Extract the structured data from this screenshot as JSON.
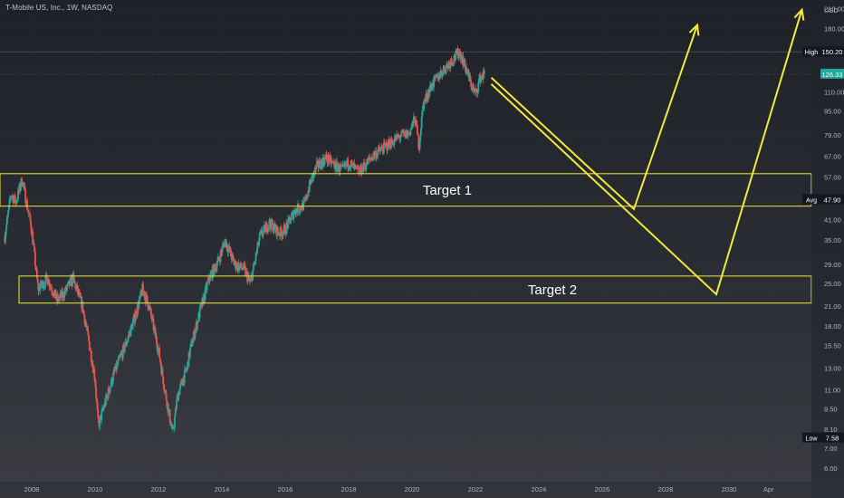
{
  "header": {
    "symbol_title": "T-Mobile US, Inc., 1W, NASDAQ"
  },
  "colors": {
    "up": "#26a69a",
    "down": "#ef5350",
    "annotation": "#f1e93b",
    "grid": "#34373e",
    "axis_text": "#b2b5be",
    "price_badge": "#26a69a"
  },
  "chart_data": {
    "type": "candlestick",
    "yscale": "log",
    "ylim": [
      5.4,
      215
    ],
    "xlim": [
      2007.0,
      2032.6
    ],
    "price_axis_unit": "USD",
    "y_ticks": [
      "210.00",
      "180.00",
      "150.00",
      "130.00",
      "110.00",
      "95.00",
      "79.00",
      "67.00",
      "57.00",
      "49.00",
      "41.00",
      "35.00",
      "29.00",
      "25.00",
      "21.00",
      "18.00",
      "15.50",
      "13.00",
      "11.00",
      "9.50",
      "8.10",
      "7.00",
      "6.00"
    ],
    "y_tick_values": [
      210,
      180,
      150,
      130,
      110,
      95,
      79,
      67,
      57,
      49,
      41,
      35,
      29,
      25,
      21,
      18,
      15.5,
      13,
      11,
      9.5,
      8.1,
      7,
      6
    ],
    "x_ticks": [
      "2008",
      "2010",
      "2012",
      "2014",
      "2016",
      "2018",
      "2020",
      "2022",
      "2024",
      "2026",
      "2028",
      "2030",
      "Apr"
    ],
    "x_tick_values": [
      2008,
      2010,
      2012,
      2014,
      2016,
      2018,
      2020,
      2022,
      2024,
      2026,
      2028,
      2030,
      2031.25
    ],
    "price_path": [
      [
        2007.15,
        36
      ],
      [
        2007.35,
        50
      ],
      [
        2007.5,
        47
      ],
      [
        2007.7,
        56
      ],
      [
        2007.85,
        46
      ],
      [
        2008.0,
        38
      ],
      [
        2008.2,
        24
      ],
      [
        2008.5,
        26
      ],
      [
        2008.8,
        22
      ],
      [
        2009.0,
        23
      ],
      [
        2009.3,
        26
      ],
      [
        2009.6,
        21
      ],
      [
        2009.8,
        16
      ],
      [
        2010.0,
        12
      ],
      [
        2010.1,
        8.3
      ],
      [
        2010.3,
        9.8
      ],
      [
        2010.6,
        12.5
      ],
      [
        2011.0,
        16
      ],
      [
        2011.3,
        20
      ],
      [
        2011.5,
        24
      ],
      [
        2011.7,
        21
      ],
      [
        2012.0,
        15
      ],
      [
        2012.2,
        11
      ],
      [
        2012.45,
        7.8
      ],
      [
        2012.6,
        10.5
      ],
      [
        2012.9,
        13
      ],
      [
        2013.0,
        15
      ],
      [
        2013.3,
        20
      ],
      [
        2013.6,
        26
      ],
      [
        2013.9,
        30
      ],
      [
        2014.1,
        35
      ],
      [
        2014.4,
        29
      ],
      [
        2014.7,
        28
      ],
      [
        2014.9,
        25
      ],
      [
        2015.2,
        36
      ],
      [
        2015.5,
        40
      ],
      [
        2015.8,
        37
      ],
      [
        2016.0,
        38
      ],
      [
        2016.3,
        44
      ],
      [
        2016.6,
        46
      ],
      [
        2016.8,
        55
      ],
      [
        2017.0,
        62
      ],
      [
        2017.3,
        66
      ],
      [
        2017.6,
        62
      ],
      [
        2017.8,
        60
      ],
      [
        2018.0,
        64
      ],
      [
        2018.3,
        59
      ],
      [
        2018.5,
        62
      ],
      [
        2018.8,
        68
      ],
      [
        2019.0,
        70
      ],
      [
        2019.3,
        74
      ],
      [
        2019.6,
        78
      ],
      [
        2019.9,
        80
      ],
      [
        2020.1,
        90
      ],
      [
        2020.22,
        72
      ],
      [
        2020.35,
        100
      ],
      [
        2020.6,
        115
      ],
      [
        2020.9,
        127
      ],
      [
        2021.1,
        135
      ],
      [
        2021.35,
        144
      ],
      [
        2021.5,
        150.2
      ],
      [
        2021.7,
        132
      ],
      [
        2021.85,
        118
      ],
      [
        2022.0,
        108
      ],
      [
        2022.15,
        123
      ],
      [
        2022.3,
        126.33
      ]
    ],
    "markers": {
      "high": {
        "label": "High",
        "value": "150.20"
      },
      "avg": {
        "label": "Avg",
        "value": "47.90"
      },
      "low": {
        "label": "Low",
        "value": "7.58"
      },
      "last": {
        "value": "126.33"
      }
    },
    "annotations": {
      "target1": {
        "label": "Target 1",
        "y_low": 45.5,
        "y_high": 58.5,
        "x_start": 2007.0
      },
      "target2": {
        "label": "Target 2",
        "y_low": 21.5,
        "y_high": 26.5,
        "x_start": 2007.6
      },
      "path_a": [
        [
          2022.5,
          123
        ],
        [
          2027.0,
          44.5
        ],
        [
          2029.0,
          185
        ]
      ],
      "path_b": [
        [
          2022.5,
          117
        ],
        [
          2029.6,
          23
        ],
        [
          2032.3,
          208
        ]
      ]
    }
  }
}
